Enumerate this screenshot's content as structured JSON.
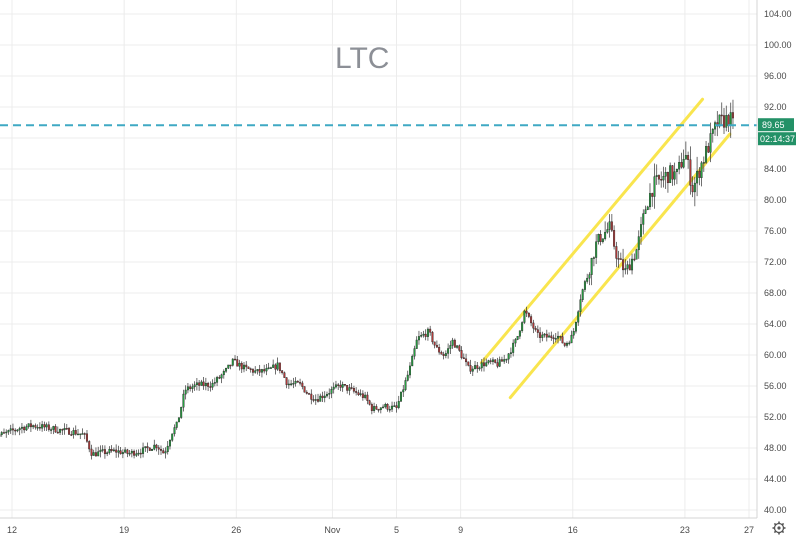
{
  "chart_data": {
    "type": "candlestick",
    "title": "LTC",
    "ylim": [
      38,
      106
    ],
    "y_ticks": [
      "40.00",
      "44.00",
      "48.00",
      "52.00",
      "56.00",
      "60.00",
      "64.00",
      "68.00",
      "72.00",
      "76.00",
      "80.00",
      "84.00",
      "88.00",
      "92.00",
      "96.00",
      "100.00",
      "104.00"
    ],
    "y_tick_values": [
      40,
      44,
      48,
      52,
      56,
      60,
      64,
      68,
      72,
      76,
      80,
      84,
      88,
      92,
      96,
      100,
      104
    ],
    "x_ticks": [
      "12",
      "19",
      "26",
      "Nov",
      "5",
      "9",
      "16",
      "23",
      "27"
    ],
    "x_tick_days": [
      12,
      19,
      26,
      32,
      36,
      40,
      47,
      54,
      58
    ],
    "x_range_days": [
      10.7,
      60.3
    ],
    "current_price": 89.65,
    "current_price_label": "89.65",
    "countdown_label": "02:14:37",
    "price_line": 89.65,
    "colors": {
      "up": "#26a041",
      "down": "#b33a3a",
      "channel": "#f9e54e",
      "price_line": "#3fa9c4",
      "price_badge": "#239167",
      "grid": "#ececec"
    },
    "channel_lines": [
      {
        "from": {
          "day": 41.3,
          "price": 59.0
        },
        "to": {
          "day": 55.1,
          "price": 93.0
        }
      },
      {
        "from": {
          "day": 43.1,
          "price": 54.5
        },
        "to": {
          "day": 56.8,
          "price": 88.5
        }
      }
    ],
    "candle_anchors": [
      [
        10.8,
        49.5
      ],
      [
        11.5,
        49.8
      ],
      [
        12.5,
        50.6
      ],
      [
        13.3,
        50.9
      ],
      [
        14.0,
        50.7
      ],
      [
        15.0,
        50.3
      ],
      [
        15.8,
        50.1
      ],
      [
        16.5,
        49.7
      ],
      [
        17.0,
        47.2
      ],
      [
        17.5,
        47.4
      ],
      [
        18.5,
        47.6
      ],
      [
        19.3,
        47.3
      ],
      [
        20.2,
        47.7
      ],
      [
        21.0,
        48.4
      ],
      [
        21.5,
        47.3
      ],
      [
        22.0,
        50.1
      ],
      [
        22.3,
        51.0
      ],
      [
        22.8,
        55.5
      ],
      [
        23.5,
        56.1
      ],
      [
        24.5,
        56.2
      ],
      [
        25.3,
        57.8
      ],
      [
        25.8,
        59.2
      ],
      [
        26.5,
        58.3
      ],
      [
        27.3,
        57.8
      ],
      [
        28.0,
        58.0
      ],
      [
        28.6,
        58.7
      ],
      [
        29.2,
        56.3
      ],
      [
        30.0,
        56.2
      ],
      [
        30.5,
        54.9
      ],
      [
        31.0,
        54.3
      ],
      [
        32.0,
        55.5
      ],
      [
        32.5,
        56.1
      ],
      [
        33.5,
        55.1
      ],
      [
        34.0,
        54.6
      ],
      [
        34.5,
        53.0
      ],
      [
        35.2,
        53.4
      ],
      [
        36.0,
        53.1
      ],
      [
        36.8,
        58.0
      ],
      [
        37.3,
        62.1
      ],
      [
        38.0,
        63.0
      ],
      [
        38.5,
        60.8
      ],
      [
        39.0,
        59.9
      ],
      [
        39.5,
        61.8
      ],
      [
        40.0,
        60.2
      ],
      [
        40.5,
        58.2
      ],
      [
        41.5,
        58.9
      ],
      [
        42.0,
        59.0
      ],
      [
        42.3,
        58.8
      ],
      [
        42.8,
        59.5
      ],
      [
        43.5,
        62.0
      ],
      [
        44.0,
        65.7
      ],
      [
        44.8,
        62.5
      ],
      [
        45.5,
        62.3
      ],
      [
        46.0,
        62.6
      ],
      [
        46.5,
        61.3
      ],
      [
        47.0,
        62.5
      ],
      [
        47.5,
        67.6
      ],
      [
        48.0,
        70.9
      ],
      [
        48.5,
        74.6
      ],
      [
        49.3,
        76.5
      ],
      [
        49.8,
        72.4
      ],
      [
        50.3,
        70.7
      ],
      [
        51.0,
        73.6
      ],
      [
        51.5,
        78.7
      ],
      [
        52.0,
        81.8
      ],
      [
        53.0,
        83.4
      ],
      [
        53.5,
        83.2
      ],
      [
        54.0,
        86.2
      ],
      [
        54.5,
        81.4
      ],
      [
        55.0,
        84.5
      ],
      [
        55.5,
        87.1
      ],
      [
        56.0,
        89.8
      ],
      [
        56.8,
        90.6
      ],
      [
        57.0,
        89.65
      ]
    ]
  }
}
